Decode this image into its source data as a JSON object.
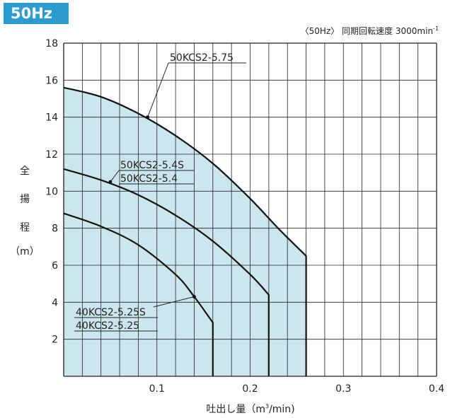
{
  "badge": "50Hz",
  "chart_data": {
    "type": "area",
    "title": "",
    "note": {
      "prefix": "〈50Hz〉 同期回転速度 3000min",
      "superscript": "-1"
    },
    "xlabel": {
      "prefix": "吐出し量（m",
      "superscript": "3",
      "suffix": "/min)"
    },
    "ylabel": [
      "全",
      "揚",
      "程",
      "（m）"
    ],
    "xlim": [
      0,
      0.4
    ],
    "ylim": [
      0,
      18
    ],
    "xticks": [
      "0.1",
      "0.2",
      "0.3",
      "0.4"
    ],
    "xtick_values": [
      0.1,
      0.2,
      0.3,
      0.4
    ],
    "yticks": [
      "2",
      "4",
      "6",
      "8",
      "10",
      "12",
      "14",
      "16",
      "18"
    ],
    "ytick_values": [
      2,
      4,
      6,
      8,
      10,
      12,
      14,
      16,
      18
    ],
    "grid": true,
    "fill_color": "#cce6ee",
    "series": [
      {
        "labels": [
          "50KCS2-5.75"
        ],
        "points": [
          [
            0.0,
            15.6
          ],
          [
            0.04,
            15.1
          ],
          [
            0.08,
            14.2
          ],
          [
            0.12,
            13.0
          ],
          [
            0.16,
            11.5
          ],
          [
            0.2,
            9.6
          ],
          [
            0.23,
            8.0
          ],
          [
            0.26,
            6.5
          ],
          [
            0.26,
            0
          ]
        ]
      },
      {
        "labels": [
          "50KCS2-5.4S",
          "50KCS2-5.4"
        ],
        "points": [
          [
            0.0,
            11.2
          ],
          [
            0.04,
            10.6
          ],
          [
            0.08,
            9.8
          ],
          [
            0.12,
            8.7
          ],
          [
            0.16,
            7.3
          ],
          [
            0.2,
            5.5
          ],
          [
            0.22,
            4.4
          ],
          [
            0.22,
            0
          ]
        ]
      },
      {
        "labels": [
          "40KCS2-5.25S",
          "40KCS2-5.25"
        ],
        "points": [
          [
            0.0,
            8.8
          ],
          [
            0.04,
            8.1
          ],
          [
            0.08,
            7.1
          ],
          [
            0.12,
            5.5
          ],
          [
            0.14,
            4.3
          ],
          [
            0.16,
            2.9
          ],
          [
            0.16,
            0
          ]
        ]
      }
    ]
  }
}
